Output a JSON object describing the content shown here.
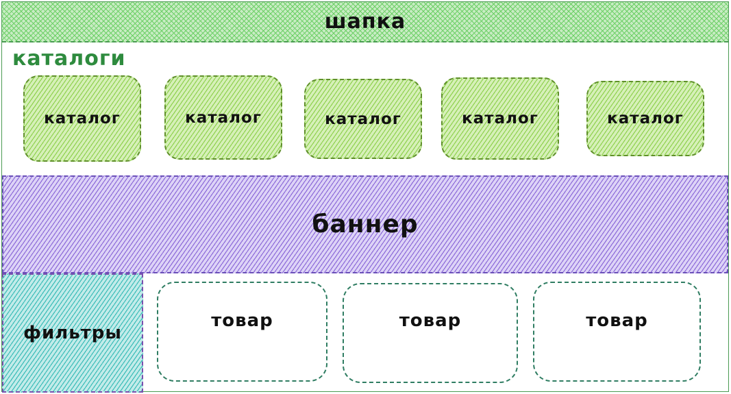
{
  "header": {
    "label": "шапка",
    "color": "#4a9a52"
  },
  "catalogs": {
    "title": "каталоги",
    "title_color": "#2e8b3e",
    "items": [
      {
        "label": "каталог"
      },
      {
        "label": "каталог"
      },
      {
        "label": "каталог"
      },
      {
        "label": "каталог"
      },
      {
        "label": "каталог"
      }
    ]
  },
  "banner": {
    "label": "баннер",
    "color": "#9b7de8"
  },
  "filters": {
    "label": "фильтры",
    "color": "#3bbcb8"
  },
  "products": {
    "items": [
      {
        "label": "товар"
      },
      {
        "label": "товар"
      },
      {
        "label": "товар"
      }
    ]
  }
}
